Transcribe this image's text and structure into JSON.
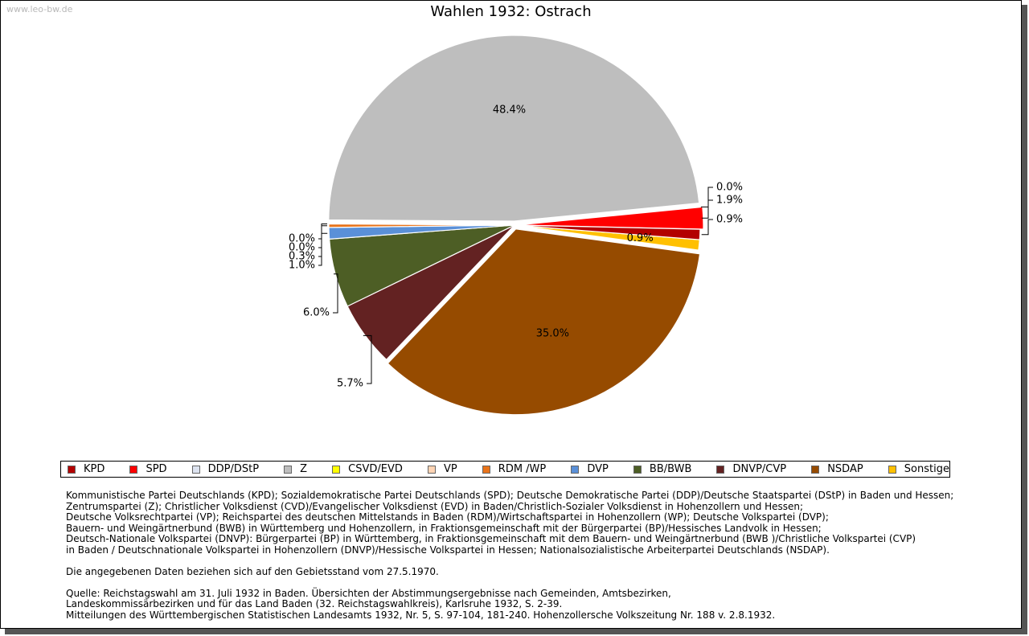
{
  "watermark": "www.leo-bw.de",
  "title": "Wahlen 1932: Ostrach",
  "colors": {
    "KPD": "#b30000",
    "SPD": "#ff0000",
    "DDP/DStP": "#dde3f0",
    "Z": "#bebebe",
    "CSVD/EVD": "#ffff00",
    "VP": "#ffd4b4",
    "RDM /WP": "#e8731a",
    "DVP": "#5a90d8",
    "BB/BWB": "#4d5e25",
    "DNVP/CVP": "#632222",
    "NSDAP": "#964b00",
    "Sonstige": "#ffc000"
  },
  "chart_data": {
    "type": "pie",
    "title": "Wahlen 1932: Ostrach",
    "slices": [
      {
        "name": "KPD",
        "value": 0.9,
        "label": "0.9%"
      },
      {
        "name": "SPD",
        "value": 1.9,
        "label": "1.9%"
      },
      {
        "name": "DDP/DStP",
        "value": 0.0,
        "label": "0.0%"
      },
      {
        "name": "Z",
        "value": 48.4,
        "label": "48.4%"
      },
      {
        "name": "CSVD/EVD",
        "value": 0.0,
        "label": "0.0%"
      },
      {
        "name": "VP",
        "value": 0.0,
        "label": "0.0%"
      },
      {
        "name": "RDM /WP",
        "value": 0.3,
        "label": "0.3%"
      },
      {
        "name": "DVP",
        "value": 1.0,
        "label": "1.0%"
      },
      {
        "name": "BB/BWB",
        "value": 6.0,
        "label": "6.0%"
      },
      {
        "name": "DNVP/CVP",
        "value": 5.7,
        "label": "5.7%"
      },
      {
        "name": "NSDAP",
        "value": 35.0,
        "label": "35.0%"
      },
      {
        "name": "Sonstige",
        "value": 0.9,
        "label": "0.9%"
      }
    ],
    "legend": [
      "KPD",
      "SPD",
      "DDP/DStP",
      "Z",
      "CSVD/EVD",
      "VP",
      "RDM /WP",
      "DVP",
      "BB/BWB",
      "DNVP/CVP",
      "NSDAP",
      "Sonstige"
    ]
  },
  "notes": {
    "lines1": [
      "Kommunistische Partei Deutschlands (KPD); Sozialdemokratische Partei Deutschlands (SPD); Deutsche Demokratische Partei (DDP)/Deutsche Staatspartei (DStP) in Baden und Hessen;",
      "Zentrumspartei (Z); Christlicher Volksdienst (CVD)/Evangelischer Volksdienst (EVD) in Baden/Christlich-Sozialer Volksdienst in Hohenzollern und Hessen;",
      "Deutsche Volksrechtpartei (VP); Reichspartei des deutschen Mittelstands in Baden (RDM)/Wirtschaftspartei in Hohenzollern (WP); Deutsche Volkspartei (DVP);",
      "Bauern- und Weingärtnerbund (BWB) in Württemberg und Hohenzollern, in Fraktionsgemeinschaft mit der Bürgerpartei (BP)/Hessisches Landvolk in Hessen;",
      "Deutsch-Nationale Volkspartei (DNVP): Bürgerpartei (BP) in Württemberg, in Fraktionsgemeinschaft mit dem Bauern- und Weingärtnerbund (BWB )/Christliche Volkspartei (CVP)",
      "in Baden / Deutschnationale Volkspartei in Hohenzollern (DNVP)/Hessische Volkspartei in Hessen; Nationalsozialistische Arbeiterpartei Deutschlands (NSDAP)."
    ],
    "gebietsstand": "Die angegebenen Daten beziehen sich auf den Gebietsstand vom 27.5.1970.",
    "quelle": [
      "Quelle: Reichstagswahl am 31. Juli 1932 in Baden. Übersichten der Abstimmungsergebnisse nach Gemeinden, Amtsbezirken,",
      "Landeskommissärbezirken und für das Land Baden (32. Reichstagswahlkreis), Karlsruhe 1932, S. 2-39.",
      "Mitteilungen des Württembergischen Statistischen Landesamts 1932, Nr. 5, S. 97-104, 181-240. Hohenzollersche Volkszeitung Nr. 188 v. 2.8.1932."
    ]
  }
}
